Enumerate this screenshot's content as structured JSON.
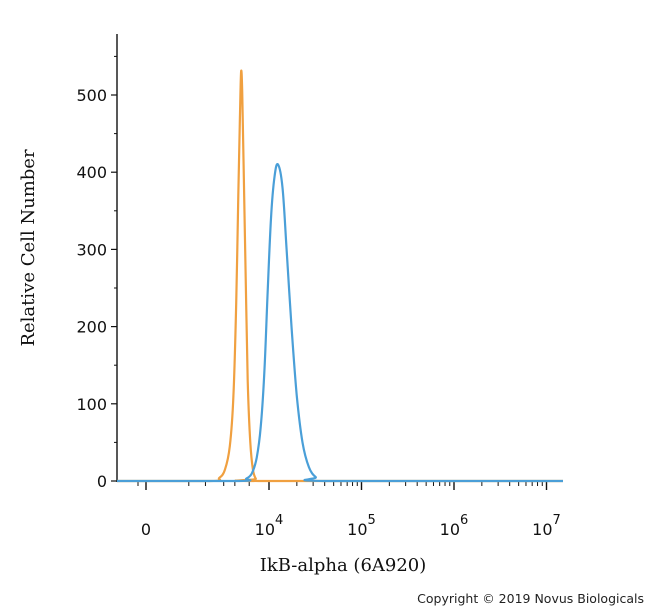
{
  "chart_data": {
    "type": "line",
    "title": "",
    "xlabel": "IkB-alpha (6A920)",
    "ylabel": "Relative Cell Number",
    "x_scale": "biexponential",
    "ylim": [
      0,
      560
    ],
    "y_ticks": [
      0,
      100,
      200,
      300,
      400,
      500
    ],
    "x_tick_labels": [
      {
        "base": "0",
        "exp": ""
      },
      {
        "base": "10",
        "exp": "4"
      },
      {
        "base": "10",
        "exp": "5"
      },
      {
        "base": "10",
        "exp": "6"
      },
      {
        "base": "10",
        "exp": "7"
      }
    ],
    "grid": false,
    "legend": "none",
    "series": [
      {
        "color": "#F0A040",
        "points": [
          {
            "x": 1200,
            "y": 0
          },
          {
            "x": 1700,
            "y": 4
          },
          {
            "x": 2100,
            "y": 15
          },
          {
            "x": 2500,
            "y": 45
          },
          {
            "x": 2850,
            "y": 110
          },
          {
            "x": 3150,
            "y": 230
          },
          {
            "x": 3400,
            "y": 370
          },
          {
            "x": 3600,
            "y": 470
          },
          {
            "x": 3750,
            "y": 530
          },
          {
            "x": 3900,
            "y": 505
          },
          {
            "x": 4100,
            "y": 410
          },
          {
            "x": 4400,
            "y": 270
          },
          {
            "x": 4750,
            "y": 130
          },
          {
            "x": 5200,
            "y": 50
          },
          {
            "x": 5700,
            "y": 15
          },
          {
            "x": 6300,
            "y": 3
          },
          {
            "x": 7000,
            "y": 0
          }
        ]
      },
      {
        "color": "#4A9FD8",
        "points": [
          {
            "x": 3500,
            "y": 0
          },
          {
            "x": 4500,
            "y": 3
          },
          {
            "x": 5500,
            "y": 10
          },
          {
            "x": 6500,
            "y": 30
          },
          {
            "x": 7500,
            "y": 70
          },
          {
            "x": 8500,
            "y": 140
          },
          {
            "x": 9500,
            "y": 240
          },
          {
            "x": 10500,
            "y": 340
          },
          {
            "x": 11500,
            "y": 395
          },
          {
            "x": 12500,
            "y": 410
          },
          {
            "x": 14000,
            "y": 380
          },
          {
            "x": 15500,
            "y": 300
          },
          {
            "x": 17500,
            "y": 200
          },
          {
            "x": 20000,
            "y": 110
          },
          {
            "x": 23000,
            "y": 50
          },
          {
            "x": 27000,
            "y": 18
          },
          {
            "x": 32000,
            "y": 5
          },
          {
            "x": 40000,
            "y": 0
          }
        ]
      }
    ]
  },
  "footer": {
    "copyright": "Copyright © 2019 Novus Biologicals"
  }
}
